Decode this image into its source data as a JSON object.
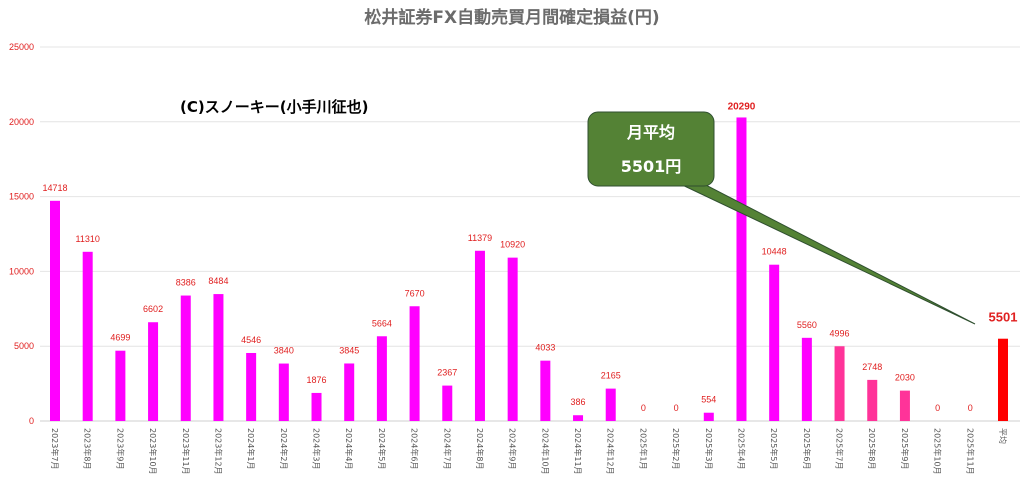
{
  "chart_data": {
    "type": "bar",
    "title": "松井証券FX自動売買月間確定損益(円)",
    "annotation": "(C)スノーキー(小手川征也)",
    "callout": {
      "line1": "月平均",
      "line2": "5501円",
      "color": "#548235"
    },
    "ylim": [
      0,
      25000
    ],
    "yticks": [
      0,
      5000,
      10000,
      15000,
      20000,
      25000
    ],
    "grid": true,
    "categories": [
      "2023年7月",
      "2023年8月",
      "2023年9月",
      "2023年10月",
      "2023年11月",
      "2023年12月",
      "2024年1月",
      "2024年2月",
      "2024年3月",
      "2024年4月",
      "2024年5月",
      "2024年6月",
      "2024年7月",
      "2024年8月",
      "2024年9月",
      "2024年10月",
      "2024年11月",
      "2024年12月",
      "2025年1月",
      "2025年2月",
      "2025年3月",
      "2025年4月",
      "2025年5月",
      "2025年6月",
      "2025年7月",
      "2025年8月",
      "2025年9月",
      "2025年10月",
      "2025年11月",
      "平均"
    ],
    "values": [
      14718,
      11310,
      4699,
      6602,
      8386,
      8484,
      4546,
      3840,
      1876,
      3845,
      5664,
      7670,
      2367,
      11379,
      10920,
      4033,
      386,
      2165,
      0,
      0,
      554,
      20290,
      10448,
      5560,
      4996,
      2748,
      2030,
      0,
      0,
      5501
    ],
    "colors": {
      "default": "#ff00ff",
      "recent": "#ff3399",
      "average": "#ff0000",
      "label": "#e02020"
    }
  }
}
